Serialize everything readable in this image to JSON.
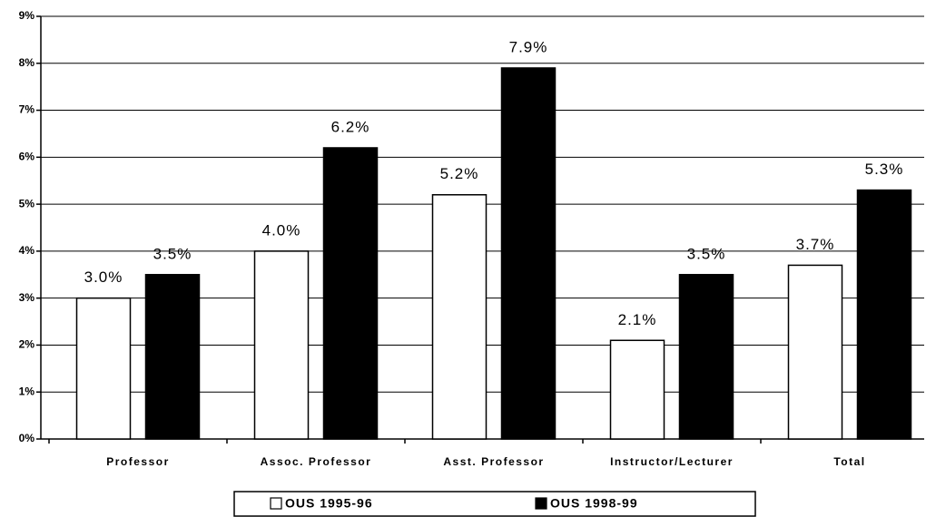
{
  "chart_data": {
    "type": "bar",
    "categories": [
      "Professor",
      "Assoc. Professor",
      "Asst. Professor",
      "Instructor/Lecturer",
      "Total"
    ],
    "series": [
      {
        "name": "OUS 1995-96",
        "color": "#ffffff",
        "values": [
          3.0,
          4.0,
          5.2,
          2.1,
          3.7
        ],
        "value_labels": [
          "3.0%",
          "4.0%",
          "5.2%",
          "2.1%",
          "3.7%"
        ]
      },
      {
        "name": "OUS 1998-99",
        "color": "#000000",
        "values": [
          3.5,
          6.2,
          7.9,
          3.5,
          5.3
        ],
        "value_labels": [
          "3.5%",
          "6.2%",
          "7.9%",
          "3.5%",
          "5.3%"
        ]
      }
    ],
    "ylim": [
      0,
      9
    ],
    "yticks": [
      {
        "value": 0,
        "label": "0%"
      },
      {
        "value": 1,
        "label": "1%"
      },
      {
        "value": 2,
        "label": "2%"
      },
      {
        "value": 3,
        "label": "3%"
      },
      {
        "value": 4,
        "label": "4%"
      },
      {
        "value": 5,
        "label": "5%"
      },
      {
        "value": 6,
        "label": "6%"
      },
      {
        "value": 7,
        "label": "7%"
      },
      {
        "value": 8,
        "label": "8%"
      },
      {
        "value": 9,
        "label": "9%"
      }
    ],
    "grid": true,
    "legend": "bottom"
  }
}
